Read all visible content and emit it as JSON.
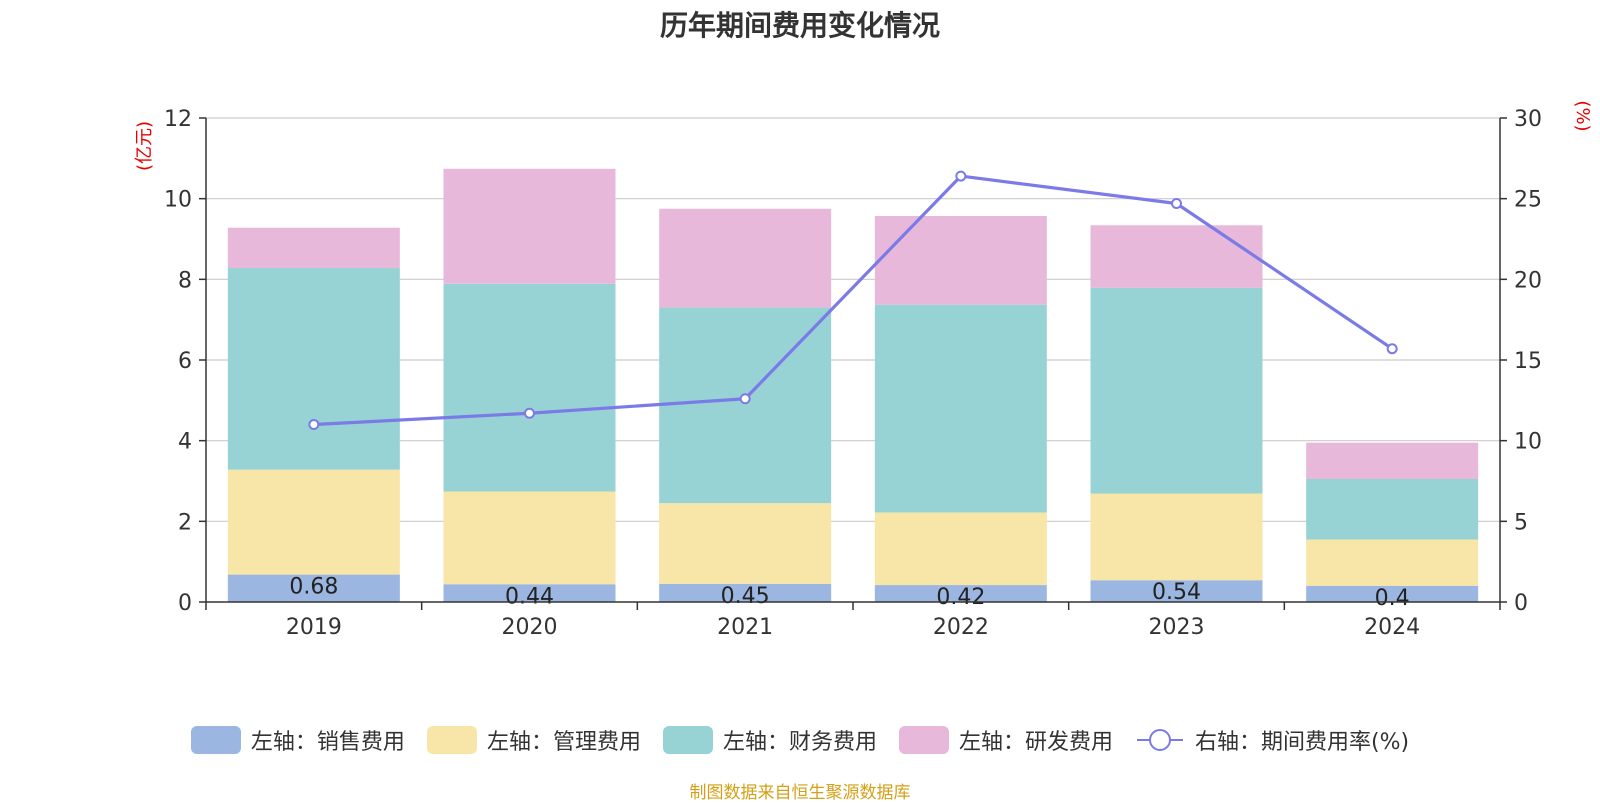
{
  "title": "历年期间费用变化情况",
  "footer": "制图数据来自恒生聚源数据库",
  "chart_data": {
    "type": "bar",
    "stacked": true,
    "title": "历年期间费用变化情况",
    "categories": [
      "2019",
      "2020",
      "2021",
      "2022",
      "2023",
      "2024"
    ],
    "y_left": {
      "unit_label": "(亿元)",
      "ylim": [
        0,
        12
      ],
      "ticks": [
        0,
        2,
        4,
        6,
        8,
        10,
        12
      ]
    },
    "y_right": {
      "unit_label": "(%)",
      "ylim": [
        0,
        30
      ],
      "ticks": [
        0,
        5,
        10,
        15,
        20,
        25,
        30
      ]
    },
    "grid": true,
    "legend_position": "bottom",
    "series": [
      {
        "name": "左轴：销售费用",
        "type": "bar",
        "axis": "left",
        "color": "#9bb6e0",
        "values": [
          0.68,
          0.44,
          0.45,
          0.42,
          0.54,
          0.4
        ],
        "labels": [
          "0.68",
          "0.44",
          "0.45",
          "0.42",
          "0.54",
          "0.4"
        ]
      },
      {
        "name": "左轴：管理费用",
        "type": "bar",
        "axis": "left",
        "color": "#f7e6a8",
        "values": [
          2.6,
          2.3,
          2.0,
          1.8,
          2.15,
          1.15
        ]
      },
      {
        "name": "左轴：财务费用",
        "type": "bar",
        "axis": "left",
        "color": "#97d3d4",
        "values": [
          5.0,
          5.15,
          4.85,
          5.15,
          5.1,
          1.5
        ]
      },
      {
        "name": "左轴：研发费用",
        "type": "bar",
        "axis": "left",
        "color": "#e7b8d9",
        "values": [
          1.0,
          2.85,
          2.45,
          2.2,
          1.55,
          0.9
        ]
      },
      {
        "name": "右轴：期间费用率(%)",
        "type": "line",
        "axis": "right",
        "color": "#7b7be8",
        "values": [
          11.0,
          11.7,
          12.6,
          26.4,
          24.7,
          15.7
        ]
      }
    ]
  }
}
